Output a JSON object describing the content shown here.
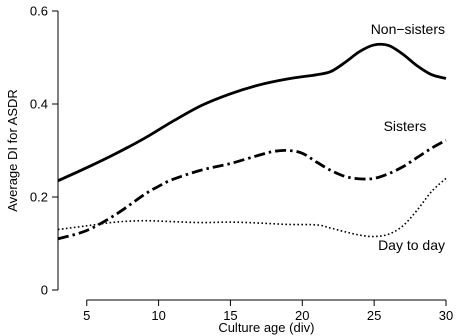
{
  "chart_data": {
    "type": "line",
    "xlabel": "Culture age (div)",
    "ylabel": "Average DI for ASDR",
    "xlim": [
      3,
      30
    ],
    "ylim": [
      0,
      0.6
    ],
    "x_ticks": [
      5,
      10,
      15,
      20,
      25,
      30
    ],
    "x_tick_labels": [
      "5",
      "10",
      "15",
      "20",
      "25",
      "30"
    ],
    "y_ticks": [
      0,
      0.2,
      0.4,
      0.6
    ],
    "y_tick_labels": [
      "0",
      "0.2",
      "0.4",
      "0.6"
    ],
    "grid": false,
    "series": [
      {
        "name": "Non−sisters",
        "line_style": "solid",
        "x": [
          3,
          5,
          7,
          9,
          11,
          13,
          15,
          17,
          19,
          21,
          22,
          23,
          24,
          25,
          26,
          27,
          28,
          29,
          30
        ],
        "y": [
          0.235,
          0.263,
          0.293,
          0.326,
          0.363,
          0.397,
          0.422,
          0.441,
          0.454,
          0.463,
          0.47,
          0.49,
          0.513,
          0.527,
          0.526,
          0.507,
          0.482,
          0.463,
          0.455
        ]
      },
      {
        "name": "Sisters",
        "line_style": "dash-dot",
        "x": [
          3,
          5,
          7,
          9,
          10,
          11,
          13,
          15,
          17,
          18,
          19,
          20,
          21,
          22,
          23,
          24,
          25,
          26,
          27,
          28,
          29,
          30
        ],
        "y": [
          0.11,
          0.128,
          0.162,
          0.205,
          0.223,
          0.238,
          0.258,
          0.272,
          0.29,
          0.298,
          0.3,
          0.294,
          0.275,
          0.257,
          0.244,
          0.239,
          0.24,
          0.25,
          0.265,
          0.285,
          0.305,
          0.322
        ]
      },
      {
        "name": "Day to day",
        "line_style": "dotted",
        "x": [
          3,
          5,
          7,
          9,
          11,
          13,
          15,
          17,
          19,
          21,
          22,
          23,
          24,
          25,
          26,
          27,
          28,
          29,
          30
        ],
        "y": [
          0.13,
          0.138,
          0.146,
          0.149,
          0.147,
          0.145,
          0.146,
          0.144,
          0.141,
          0.14,
          0.133,
          0.125,
          0.118,
          0.115,
          0.12,
          0.138,
          0.172,
          0.212,
          0.24
        ]
      }
    ]
  }
}
